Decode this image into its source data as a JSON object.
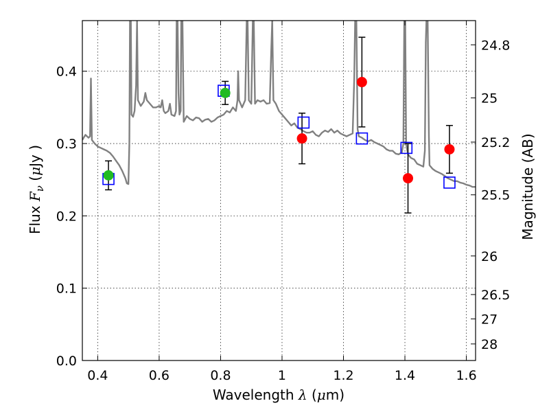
{
  "chart_data": {
    "type": "scatter",
    "title": "",
    "xlabel": {
      "prefix": "Wavelength",
      "symbol": "λ",
      "unit_open": " (",
      "unit_mu": "μ",
      "unit_rest": "m)"
    },
    "ylabel": {
      "prefix": "Flux",
      "symbol": "F",
      "subscript": "ν",
      "unit_open": " (",
      "unit_mu": "μ",
      "unit_rest": "Jy )"
    },
    "y2label": "Magnitude (AB)",
    "xlim": [
      0.35,
      1.63
    ],
    "ylim": [
      0.0,
      0.47
    ],
    "grid": true,
    "x_ticks": [
      {
        "v": 0.4,
        "label": "0.4"
      },
      {
        "v": 0.6,
        "label": "0.6"
      },
      {
        "v": 0.8,
        "label": "0.8"
      },
      {
        "v": 1.0,
        "label": "1"
      },
      {
        "v": 1.2,
        "label": "1.2"
      },
      {
        "v": 1.4,
        "label": "1.4"
      },
      {
        "v": 1.6,
        "label": "1.6"
      }
    ],
    "y_ticks": [
      {
        "v": 0.0,
        "label": "0.0"
      },
      {
        "v": 0.1,
        "label": "0.1"
      },
      {
        "v": 0.2,
        "label": "0.2"
      },
      {
        "v": 0.3,
        "label": "0.3"
      },
      {
        "v": 0.4,
        "label": "0.4"
      }
    ],
    "mag_ticks": [
      {
        "v": 24.8,
        "label": "24.8"
      },
      {
        "v": 25.0,
        "label": "25"
      },
      {
        "v": 25.2,
        "label": "25.2"
      },
      {
        "v": 25.5,
        "label": "25.5"
      },
      {
        "v": 26.0,
        "label": "26"
      },
      {
        "v": 26.5,
        "label": "26.5"
      },
      {
        "v": 27.0,
        "label": "27"
      },
      {
        "v": 28.0,
        "label": "28"
      }
    ],
    "series": [
      {
        "name": "model spectrum",
        "kind": "line",
        "color": "#808080",
        "points": [
          [
            0.35,
            0.305
          ],
          [
            0.36,
            0.312
          ],
          [
            0.37,
            0.308
          ],
          [
            0.375,
            0.31
          ],
          [
            0.378,
            0.39
          ],
          [
            0.381,
            0.305
          ],
          [
            0.39,
            0.3
          ],
          [
            0.4,
            0.296
          ],
          [
            0.41,
            0.294
          ],
          [
            0.42,
            0.292
          ],
          [
            0.43,
            0.29
          ],
          [
            0.44,
            0.287
          ],
          [
            0.45,
            0.282
          ],
          [
            0.46,
            0.276
          ],
          [
            0.47,
            0.27
          ],
          [
            0.48,
            0.262
          ],
          [
            0.49,
            0.252
          ],
          [
            0.495,
            0.245
          ],
          [
            0.5,
            0.244
          ],
          [
            0.503,
            0.3
          ],
          [
            0.505,
            0.47
          ],
          [
            0.508,
            0.47
          ],
          [
            0.51,
            0.34
          ],
          [
            0.515,
            0.337
          ],
          [
            0.52,
            0.345
          ],
          [
            0.525,
            0.38
          ],
          [
            0.528,
            0.47
          ],
          [
            0.531,
            0.36
          ],
          [
            0.54,
            0.352
          ],
          [
            0.55,
            0.358
          ],
          [
            0.555,
            0.37
          ],
          [
            0.56,
            0.36
          ],
          [
            0.57,
            0.355
          ],
          [
            0.58,
            0.35
          ],
          [
            0.59,
            0.35
          ],
          [
            0.6,
            0.352
          ],
          [
            0.605,
            0.35
          ],
          [
            0.61,
            0.36
          ],
          [
            0.615,
            0.345
          ],
          [
            0.62,
            0.342
          ],
          [
            0.63,
            0.345
          ],
          [
            0.635,
            0.355
          ],
          [
            0.64,
            0.34
          ],
          [
            0.65,
            0.338
          ],
          [
            0.655,
            0.345
          ],
          [
            0.657,
            0.47
          ],
          [
            0.66,
            0.47
          ],
          [
            0.663,
            0.37
          ],
          [
            0.666,
            0.34
          ],
          [
            0.67,
            0.345
          ],
          [
            0.672,
            0.47
          ],
          [
            0.676,
            0.47
          ],
          [
            0.68,
            0.33
          ],
          [
            0.69,
            0.338
          ],
          [
            0.7,
            0.334
          ],
          [
            0.71,
            0.332
          ],
          [
            0.72,
            0.336
          ],
          [
            0.73,
            0.335
          ],
          [
            0.74,
            0.33
          ],
          [
            0.75,
            0.333
          ],
          [
            0.76,
            0.334
          ],
          [
            0.77,
            0.33
          ],
          [
            0.78,
            0.332
          ],
          [
            0.79,
            0.336
          ],
          [
            0.8,
            0.338
          ],
          [
            0.81,
            0.34
          ],
          [
            0.82,
            0.345
          ],
          [
            0.83,
            0.343
          ],
          [
            0.84,
            0.35
          ],
          [
            0.85,
            0.345
          ],
          [
            0.855,
            0.36
          ],
          [
            0.857,
            0.4
          ],
          [
            0.86,
            0.36
          ],
          [
            0.87,
            0.35
          ],
          [
            0.88,
            0.36
          ],
          [
            0.885,
            0.47
          ],
          [
            0.888,
            0.47
          ],
          [
            0.892,
            0.36
          ],
          [
            0.9,
            0.355
          ],
          [
            0.905,
            0.47
          ],
          [
            0.908,
            0.47
          ],
          [
            0.912,
            0.355
          ],
          [
            0.92,
            0.36
          ],
          [
            0.93,
            0.358
          ],
          [
            0.94,
            0.36
          ],
          [
            0.95,
            0.355
          ],
          [
            0.96,
            0.356
          ],
          [
            0.965,
            0.43
          ],
          [
            0.968,
            0.47
          ],
          [
            0.972,
            0.36
          ],
          [
            0.98,
            0.355
          ],
          [
            0.99,
            0.345
          ],
          [
            1.0,
            0.34
          ],
          [
            1.01,
            0.335
          ],
          [
            1.02,
            0.33
          ],
          [
            1.03,
            0.325
          ],
          [
            1.04,
            0.328
          ],
          [
            1.05,
            0.322
          ],
          [
            1.06,
            0.32
          ],
          [
            1.07,
            0.317
          ],
          [
            1.08,
            0.315
          ],
          [
            1.09,
            0.315
          ],
          [
            1.1,
            0.317
          ],
          [
            1.11,
            0.312
          ],
          [
            1.12,
            0.31
          ],
          [
            1.13,
            0.315
          ],
          [
            1.14,
            0.318
          ],
          [
            1.15,
            0.316
          ],
          [
            1.16,
            0.32
          ],
          [
            1.17,
            0.315
          ],
          [
            1.18,
            0.318
          ],
          [
            1.19,
            0.314
          ],
          [
            1.2,
            0.312
          ],
          [
            1.21,
            0.31
          ],
          [
            1.22,
            0.312
          ],
          [
            1.23,
            0.314
          ],
          [
            1.235,
            0.39
          ],
          [
            1.238,
            0.47
          ],
          [
            1.242,
            0.47
          ],
          [
            1.246,
            0.32
          ],
          [
            1.25,
            0.31
          ],
          [
            1.26,
            0.308
          ],
          [
            1.27,
            0.305
          ],
          [
            1.28,
            0.303
          ],
          [
            1.29,
            0.305
          ],
          [
            1.3,
            0.302
          ],
          [
            1.31,
            0.3
          ],
          [
            1.32,
            0.298
          ],
          [
            1.33,
            0.296
          ],
          [
            1.34,
            0.292
          ],
          [
            1.35,
            0.29
          ],
          [
            1.36,
            0.29
          ],
          [
            1.37,
            0.286
          ],
          [
            1.38,
            0.285
          ],
          [
            1.39,
            0.288
          ],
          [
            1.395,
            0.3
          ],
          [
            1.398,
            0.47
          ],
          [
            1.401,
            0.47
          ],
          [
            1.404,
            0.3
          ],
          [
            1.41,
            0.285
          ],
          [
            1.42,
            0.28
          ],
          [
            1.43,
            0.278
          ],
          [
            1.44,
            0.272
          ],
          [
            1.45,
            0.27
          ],
          [
            1.46,
            0.268
          ],
          [
            1.465,
            0.29
          ],
          [
            1.468,
            0.44
          ],
          [
            1.47,
            0.47
          ],
          [
            1.474,
            0.47
          ],
          [
            1.478,
            0.31
          ],
          [
            1.48,
            0.27
          ],
          [
            1.49,
            0.265
          ],
          [
            1.5,
            0.262
          ],
          [
            1.51,
            0.26
          ],
          [
            1.52,
            0.258
          ],
          [
            1.53,
            0.255
          ],
          [
            1.54,
            0.252
          ],
          [
            1.55,
            0.25
          ],
          [
            1.56,
            0.248
          ],
          [
            1.57,
            0.248
          ],
          [
            1.58,
            0.246
          ],
          [
            1.59,
            0.245
          ],
          [
            1.6,
            0.243
          ],
          [
            1.61,
            0.242
          ],
          [
            1.62,
            0.24
          ],
          [
            1.63,
            0.24
          ]
        ]
      },
      {
        "name": "green observed",
        "kind": "points",
        "color": "#22bb22",
        "points": [
          {
            "x": 0.435,
            "y": 0.256,
            "err": 0.02
          },
          {
            "x": 0.815,
            "y": 0.37,
            "err": 0.016
          }
        ]
      },
      {
        "name": "red observed",
        "kind": "points",
        "color": "#ff0000",
        "points": [
          {
            "x": 1.065,
            "y": 0.307,
            "err": 0.035
          },
          {
            "x": 1.26,
            "y": 0.385,
            "err": 0.062
          },
          {
            "x": 1.41,
            "y": 0.252,
            "err": 0.048
          },
          {
            "x": 1.545,
            "y": 0.292,
            "err": 0.033
          }
        ]
      },
      {
        "name": "model photometry",
        "kind": "squares",
        "color": "#0000ff",
        "points": [
          {
            "x": 0.435,
            "y": 0.251
          },
          {
            "x": 0.81,
            "y": 0.373
          },
          {
            "x": 1.07,
            "y": 0.329
          },
          {
            "x": 1.26,
            "y": 0.307
          },
          {
            "x": 1.405,
            "y": 0.294
          },
          {
            "x": 1.545,
            "y": 0.246
          }
        ]
      }
    ]
  }
}
